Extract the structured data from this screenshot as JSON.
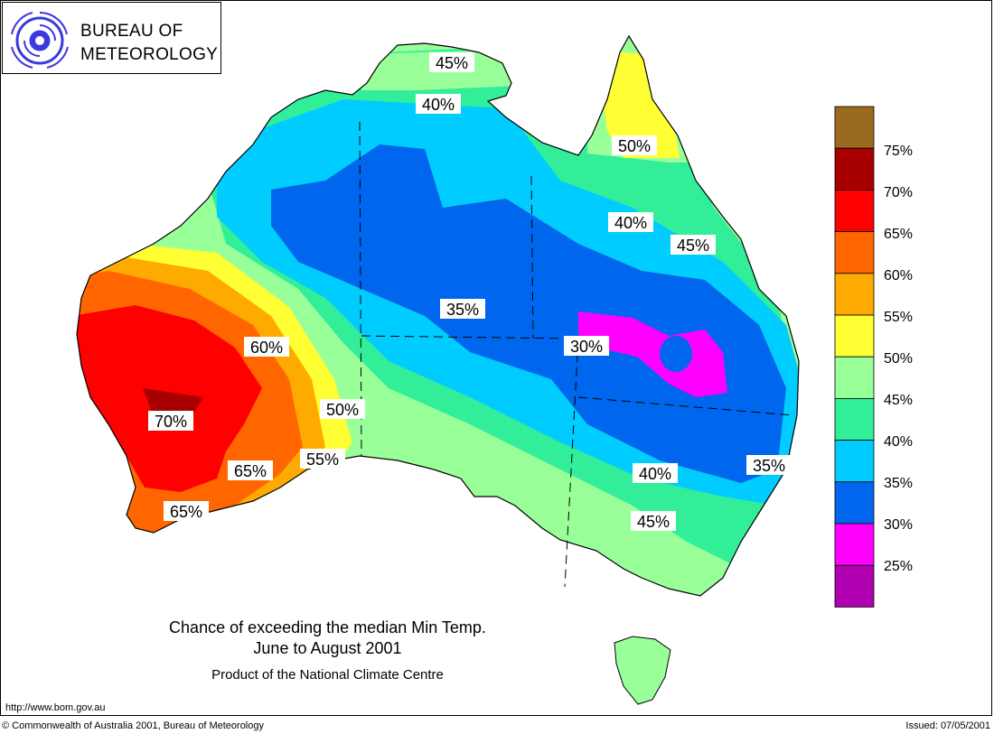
{
  "logo": {
    "line1": "BUREAU OF",
    "line2": "METEOROLOGY",
    "icon": "bom-swirl-logo"
  },
  "map": {
    "region": "Australia",
    "contour_labels": [
      "45%",
      "40%",
      "50%",
      "40%",
      "45%",
      "35%",
      "30%",
      "60%",
      "70%",
      "50%",
      "55%",
      "65%",
      "65%",
      "40%",
      "35%",
      "45%"
    ]
  },
  "legend": {
    "items": [
      {
        "label": "75%",
        "color": "#9a6a1f"
      },
      {
        "label": "70%",
        "color": "#a80000"
      },
      {
        "label": "65%",
        "color": "#ff0000"
      },
      {
        "label": "60%",
        "color": "#ff6600"
      },
      {
        "label": "55%",
        "color": "#ffaa00"
      },
      {
        "label": "50%",
        "color": "#ffff33"
      },
      {
        "label": "45%",
        "color": "#99ff99"
      },
      {
        "label": "40%",
        "color": "#33ee99"
      },
      {
        "label": "35%",
        "color": "#00ccff"
      },
      {
        "label": "30%",
        "color": "#0066ee"
      },
      {
        "label": "25%",
        "color": "#ff00ff"
      },
      {
        "label": "",
        "color": "#b000b0"
      }
    ]
  },
  "caption": {
    "title_line1": "Chance of exceeding the median Min Temp.",
    "title_line2": "June to August 2001",
    "product": "Product of the National Climate Centre"
  },
  "footer": {
    "url": "http://www.bom.gov.au",
    "copyright": "© Commonwealth of Australia 2001, Bureau of Meteorology",
    "issued": "Issued: 07/05/2001"
  }
}
